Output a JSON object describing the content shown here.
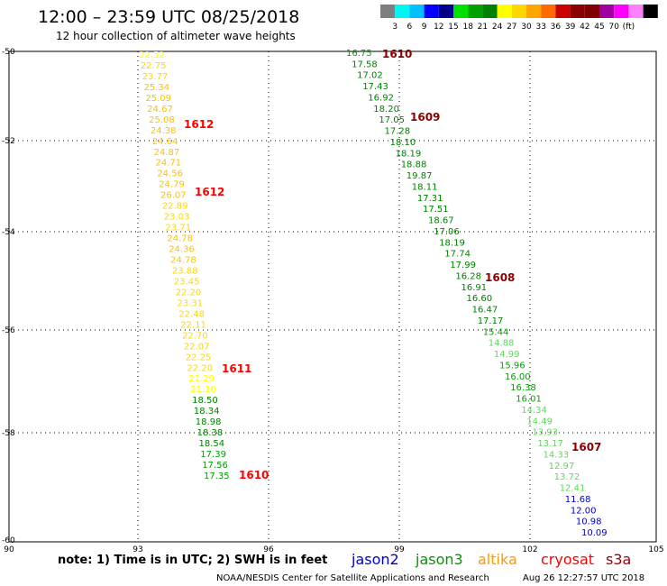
{
  "header": {
    "title": "12:00 – 23:59 UTC 08/25/2018",
    "subtitle": "12 hour collection of altimeter wave heights"
  },
  "legend": {
    "colors": [
      "#7f7f7f",
      "#00f5f5",
      "#00c0ff",
      "#0000ff",
      "#00008b",
      "#00e000",
      "#00a000",
      "#008000",
      "#ffff00",
      "#ffd700",
      "#ffa500",
      "#ff6a00",
      "#cc0000",
      "#8b0000",
      "#800000",
      "#a000a0",
      "#ff00ff",
      "#ff80ff",
      "#000000"
    ],
    "labels": [
      "3",
      "6",
      "9",
      "12",
      "15",
      "18",
      "21",
      "24",
      "27",
      "30",
      "33",
      "36",
      "39",
      "42",
      "45",
      "70",
      "(ft)"
    ]
  },
  "axes": {
    "lon_ticks": [
      "90",
      "93",
      "96",
      "99",
      "102",
      "105"
    ],
    "lat_ticks": [
      "-50",
      "-52",
      "-54",
      "-56",
      "-58",
      "-60"
    ]
  },
  "note": "note: 1) Time is in UTC; 2) SWH is in feet",
  "satellites": [
    {
      "name": "jason2",
      "color": "#0000cc"
    },
    {
      "name": "jason3",
      "color": "#009900"
    },
    {
      "name": "altika",
      "color": "#ff9900"
    },
    {
      "name": "cryosat",
      "color": "#ff0000"
    },
    {
      "name": "s3a",
      "color": "#990000"
    }
  ],
  "footer": {
    "credit": "NOAA/NESDIS Center for Satellite Applications and Research",
    "timestamp": "Aug 26 12:27:57 UTC 2018"
  },
  "track_west": [
    {
      "v": "22.52",
      "c": "#ffff00"
    },
    {
      "v": "22.75",
      "c": "#ffd700"
    },
    {
      "v": "23.77",
      "c": "#ffd700"
    },
    {
      "v": "25.34",
      "c": "#ffc000"
    },
    {
      "v": "25.09",
      "c": "#ffc000"
    },
    {
      "v": "24.67",
      "c": "#ffc000"
    },
    {
      "v": "25.08",
      "c": "#ffc000"
    },
    {
      "v": "24.38",
      "c": "#ffc000"
    },
    {
      "v": "24.64",
      "c": "#ffc000"
    },
    {
      "v": "24.87",
      "c": "#ffc000"
    },
    {
      "v": "24.71",
      "c": "#ffc000"
    },
    {
      "v": "24.56",
      "c": "#ffc000"
    },
    {
      "v": "24.79",
      "c": "#ffc000"
    },
    {
      "v": "26.07",
      "c": "#ffc000"
    },
    {
      "v": "22.89",
      "c": "#ffd700"
    },
    {
      "v": "23.03",
      "c": "#ffd700"
    },
    {
      "v": "23.71",
      "c": "#ffd700"
    },
    {
      "v": "24.78",
      "c": "#ffc000"
    },
    {
      "v": "24.36",
      "c": "#ffc000"
    },
    {
      "v": "24.78",
      "c": "#ffc000"
    },
    {
      "v": "23.88",
      "c": "#ffd700"
    },
    {
      "v": "23.45",
      "c": "#ffd700"
    },
    {
      "v": "22.20",
      "c": "#ffd700"
    },
    {
      "v": "23.31",
      "c": "#ffd700"
    },
    {
      "v": "22.48",
      "c": "#ffd700"
    },
    {
      "v": "22.11",
      "c": "#ffd700"
    },
    {
      "v": "22.70",
      "c": "#ffd700"
    },
    {
      "v": "22.07",
      "c": "#ffd700"
    },
    {
      "v": "22.25",
      "c": "#ffd700"
    },
    {
      "v": "22.20",
      "c": "#ffd700"
    },
    {
      "v": "21.29",
      "c": "#ffff00"
    },
    {
      "v": "21.10",
      "c": "#ffff00"
    },
    {
      "v": "18.50",
      "c": "#008000"
    },
    {
      "v": "18.34",
      "c": "#008000"
    },
    {
      "v": "18.98",
      "c": "#008000"
    },
    {
      "v": "18.38",
      "c": "#008000"
    },
    {
      "v": "18.54",
      "c": "#008000"
    },
    {
      "v": "17.39",
      "c": "#00a000"
    },
    {
      "v": "17.56",
      "c": "#00a000"
    },
    {
      "v": "17.35",
      "c": "#00a000"
    }
  ],
  "track_east": [
    {
      "v": "16.75",
      "c": "#00a000"
    },
    {
      "v": "17.58",
      "c": "#008000"
    },
    {
      "v": "17.02",
      "c": "#008000"
    },
    {
      "v": "17.43",
      "c": "#008000"
    },
    {
      "v": "16.92",
      "c": "#008000"
    },
    {
      "v": "18.20",
      "c": "#008000"
    },
    {
      "v": "17.05",
      "c": "#008000"
    },
    {
      "v": "17.28",
      "c": "#008000"
    },
    {
      "v": "18.10",
      "c": "#008000"
    },
    {
      "v": "18.19",
      "c": "#008000"
    },
    {
      "v": "18.88",
      "c": "#008000"
    },
    {
      "v": "19.87",
      "c": "#008000"
    },
    {
      "v": "18.11",
      "c": "#008000"
    },
    {
      "v": "17.31",
      "c": "#008000"
    },
    {
      "v": "17.51",
      "c": "#008000"
    },
    {
      "v": "18.67",
      "c": "#008000"
    },
    {
      "v": "17.06",
      "c": "#008000"
    },
    {
      "v": "18.19",
      "c": "#008000"
    },
    {
      "v": "17.74",
      "c": "#008000"
    },
    {
      "v": "17.99",
      "c": "#008000"
    },
    {
      "v": "16.28",
      "c": "#008000"
    },
    {
      "v": "16.91",
      "c": "#008000"
    },
    {
      "v": "16.60",
      "c": "#008000"
    },
    {
      "v": "16.47",
      "c": "#008000"
    },
    {
      "v": "17.17",
      "c": "#008000"
    },
    {
      "v": "15.44",
      "c": "#00a000"
    },
    {
      "v": "14.88",
      "c": "#55dd55"
    },
    {
      "v": "14.99",
      "c": "#55dd55"
    },
    {
      "v": "15.96",
      "c": "#00a000"
    },
    {
      "v": "16.00",
      "c": "#00a000"
    },
    {
      "v": "16.38",
      "c": "#00a000"
    },
    {
      "v": "16.01",
      "c": "#00a000"
    },
    {
      "v": "14.34",
      "c": "#55dd55"
    },
    {
      "v": "14.49",
      "c": "#55dd55"
    },
    {
      "v": "13.93",
      "c": "#55dd55"
    },
    {
      "v": "13.17",
      "c": "#55dd55"
    },
    {
      "v": "14.33",
      "c": "#55dd55"
    },
    {
      "v": "12.97",
      "c": "#55dd55"
    },
    {
      "v": "13.72",
      "c": "#55dd55"
    },
    {
      "v": "12.41",
      "c": "#55dd55"
    },
    {
      "v": "11.68",
      "c": "#0000cc"
    },
    {
      "v": "12.00",
      "c": "#0000cc"
    },
    {
      "v": "10.98",
      "c": "#0000cc"
    },
    {
      "v": "10.09",
      "c": "#0000cc"
    }
  ],
  "time_labels": [
    {
      "t": "1612",
      "c": "#ff0000"
    },
    {
      "t": "1612",
      "c": "#ff0000"
    },
    {
      "t": "1611",
      "c": "#ff0000"
    },
    {
      "t": "1610",
      "c": "#ff0000"
    },
    {
      "t": "1610",
      "c": "#8b0000"
    },
    {
      "t": "1609",
      "c": "#8b0000"
    },
    {
      "t": "1608",
      "c": "#8b0000"
    },
    {
      "t": "1607",
      "c": "#8b0000"
    }
  ]
}
